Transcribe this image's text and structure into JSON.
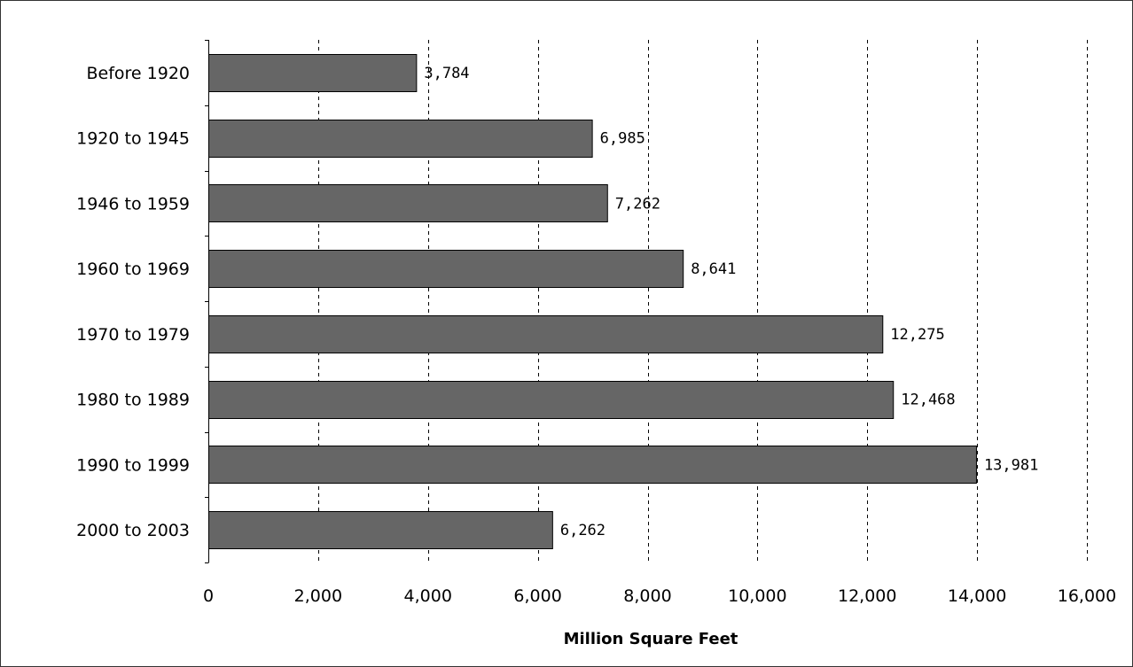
{
  "chart_data": {
    "type": "bar",
    "orientation": "horizontal",
    "categories": [
      "Before 1920",
      "1920 to 1945",
      "1946 to 1959",
      "1960 to 1969",
      "1970 to 1979",
      "1980 to 1989",
      "1990 to 1999",
      "2000 to 2003"
    ],
    "values": [
      3784,
      6985,
      7262,
      8641,
      12275,
      12468,
      13981,
      6262
    ],
    "value_labels": [
      "3,784",
      "6,985",
      "7,262",
      "8,641",
      "12,275",
      "12,468",
      "13,981",
      "6,262"
    ],
    "xlabel": "Million Square Feet",
    "ylabel": "",
    "title": "",
    "xlim": [
      0,
      16000
    ],
    "x_ticks": [
      0,
      2000,
      4000,
      6000,
      8000,
      10000,
      12000,
      14000,
      16000
    ],
    "x_tick_labels": [
      "0",
      "2,000",
      "4,000",
      "6,000",
      "8,000",
      "10,000",
      "12,000",
      "14,000",
      "16,000"
    ],
    "grid": "vertical dashed",
    "legend": "none",
    "bar_color": "#666666",
    "bar_outline_color": "#000000"
  }
}
